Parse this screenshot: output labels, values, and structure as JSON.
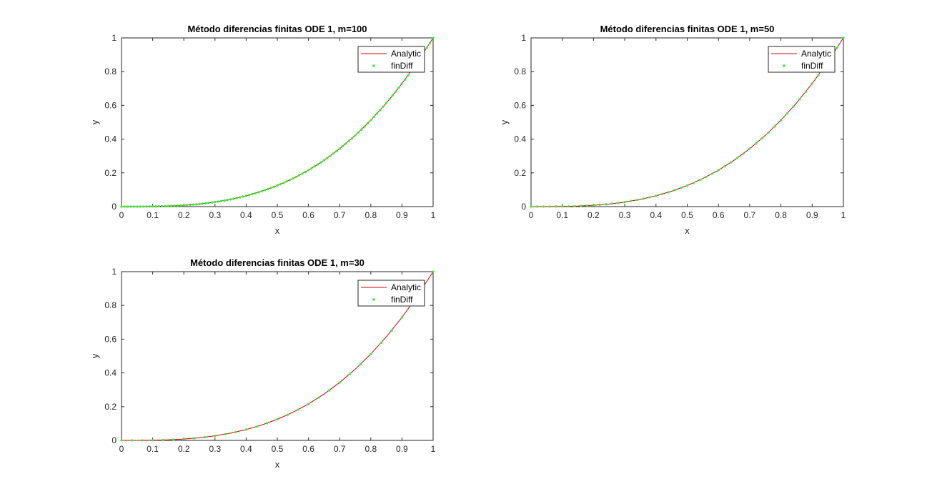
{
  "chart_data": [
    {
      "type": "line",
      "title": "Método diferencias finitas ODE 1, m=100",
      "xlabel": "x",
      "ylabel": "y",
      "xlim": [
        0,
        1
      ],
      "ylim": [
        0,
        1
      ],
      "xticks": [
        0,
        0.1,
        0.2,
        0.3,
        0.4,
        0.5,
        0.6,
        0.7,
        0.8,
        0.9,
        1
      ],
      "xtick_labels": [
        "0",
        "0.1",
        "0.2",
        "0.3",
        "0.4",
        "0.5",
        "0.6",
        "0.7",
        "0.8",
        "0.9",
        "1"
      ],
      "yticks": [
        0,
        0.2,
        0.4,
        0.6,
        0.8,
        1
      ],
      "ytick_labels": [
        "0",
        "0.2",
        "0.4",
        "0.6",
        "0.8",
        "1"
      ],
      "grid": false,
      "legend": "top-right",
      "series": [
        {
          "name": "Analytic",
          "style": "line",
          "color": "#d00000",
          "x": [
            0,
            0.05,
            0.1,
            0.15,
            0.2,
            0.25,
            0.3,
            0.35,
            0.4,
            0.45,
            0.5,
            0.55,
            0.6,
            0.65,
            0.7,
            0.75,
            0.8,
            0.85,
            0.9,
            0.95,
            1
          ],
          "y": [
            0,
            0.0001,
            0.001,
            0.0034,
            0.008,
            0.0156,
            0.027,
            0.0429,
            0.064,
            0.0911,
            0.125,
            0.1664,
            0.216,
            0.2746,
            0.343,
            0.4219,
            0.512,
            0.6141,
            0.729,
            0.8574,
            1
          ]
        },
        {
          "name": "finDiff",
          "style": "markers",
          "color": "#33ee33",
          "x": [
            0,
            0.01,
            0.02,
            0.03,
            0.04,
            0.05,
            0.06,
            0.07,
            0.08,
            0.09,
            0.1,
            0.11,
            0.12,
            0.13,
            0.14,
            0.15,
            0.16,
            0.17,
            0.18,
            0.19,
            0.2,
            0.21,
            0.22,
            0.23,
            0.24,
            0.25,
            0.26,
            0.27,
            0.28,
            0.29,
            0.3,
            0.31,
            0.32,
            0.33,
            0.34,
            0.35,
            0.36,
            0.37,
            0.38,
            0.39,
            0.4,
            0.41,
            0.42,
            0.43,
            0.44,
            0.45,
            0.46,
            0.47,
            0.48,
            0.49,
            0.5,
            0.51,
            0.52,
            0.53,
            0.54,
            0.55,
            0.56,
            0.57,
            0.58,
            0.59,
            0.6,
            0.61,
            0.62,
            0.63,
            0.64,
            0.65,
            0.66,
            0.67,
            0.68,
            0.69,
            0.7,
            0.71,
            0.72,
            0.73,
            0.74,
            0.75,
            0.76,
            0.77,
            0.78,
            0.79,
            0.8,
            0.81,
            0.82,
            0.83,
            0.84,
            0.85,
            0.86,
            0.87,
            0.88,
            0.89,
            0.9,
            0.91,
            0.92,
            0.93,
            0.94,
            0.95,
            0.96,
            0.97,
            0.98,
            0.99,
            1
          ],
          "y": [
            0,
            0,
            0,
            0,
            0.0001,
            0.0001,
            0.0002,
            0.0003,
            0.0005,
            0.0007,
            0.001,
            0.0013,
            0.0017,
            0.0022,
            0.0027,
            0.0034,
            0.0041,
            0.0049,
            0.0058,
            0.0069,
            0.008,
            0.0093,
            0.0106,
            0.0122,
            0.0138,
            0.0156,
            0.0176,
            0.0197,
            0.022,
            0.0244,
            0.027,
            0.0298,
            0.0328,
            0.0359,
            0.0393,
            0.0429,
            0.0467,
            0.0507,
            0.0549,
            0.0593,
            0.064,
            0.0689,
            0.0741,
            0.0795,
            0.0852,
            0.0911,
            0.0973,
            0.1038,
            0.1106,
            0.1176,
            0.125,
            0.1327,
            0.1406,
            0.1489,
            0.1575,
            0.1664,
            0.1756,
            0.1852,
            0.1951,
            0.2054,
            0.216,
            0.227,
            0.2383,
            0.25,
            0.2621,
            0.2746,
            0.2875,
            0.3008,
            0.3144,
            0.3285,
            0.343,
            0.3579,
            0.3732,
            0.389,
            0.4052,
            0.4219,
            0.439,
            0.4565,
            0.4746,
            0.493,
            0.512,
            0.5314,
            0.5514,
            0.5718,
            0.5927,
            0.6141,
            0.636,
            0.6585,
            0.6815,
            0.705,
            0.729,
            0.7536,
            0.7787,
            0.8044,
            0.8306,
            0.8574,
            0.8847,
            0.9127,
            0.9412,
            0.9703,
            1
          ]
        }
      ]
    },
    {
      "type": "line",
      "title": "Método diferencias finitas ODE 1, m=50",
      "xlabel": "x",
      "ylabel": "y",
      "xlim": [
        0,
        1
      ],
      "ylim": [
        0,
        1
      ],
      "xticks": [
        0,
        0.1,
        0.2,
        0.3,
        0.4,
        0.5,
        0.6,
        0.7,
        0.8,
        0.9,
        1
      ],
      "xtick_labels": [
        "0",
        "0.1",
        "0.2",
        "0.3",
        "0.4",
        "0.5",
        "0.6",
        "0.7",
        "0.8",
        "0.9",
        "1"
      ],
      "yticks": [
        0,
        0.2,
        0.4,
        0.6,
        0.8,
        1
      ],
      "ytick_labels": [
        "0",
        "0.2",
        "0.4",
        "0.6",
        "0.8",
        "1"
      ],
      "grid": false,
      "legend": "top-right",
      "series": [
        {
          "name": "Analytic",
          "style": "line",
          "color": "#d00000",
          "x": [
            0,
            0.05,
            0.1,
            0.15,
            0.2,
            0.25,
            0.3,
            0.35,
            0.4,
            0.45,
            0.5,
            0.55,
            0.6,
            0.65,
            0.7,
            0.75,
            0.8,
            0.85,
            0.9,
            0.95,
            1
          ],
          "y": [
            0,
            0.0001,
            0.001,
            0.0034,
            0.008,
            0.0156,
            0.027,
            0.0429,
            0.064,
            0.0911,
            0.125,
            0.1664,
            0.216,
            0.2746,
            0.343,
            0.4219,
            0.512,
            0.6141,
            0.729,
            0.8574,
            1
          ]
        },
        {
          "name": "finDiff",
          "style": "markers",
          "color": "#33ee33",
          "x": [
            0,
            0.02,
            0.04,
            0.06,
            0.08,
            0.1,
            0.12,
            0.14,
            0.16,
            0.18,
            0.2,
            0.22,
            0.24,
            0.26,
            0.28,
            0.3,
            0.32,
            0.34,
            0.36,
            0.38,
            0.4,
            0.42,
            0.44,
            0.46,
            0.48,
            0.5,
            0.52,
            0.54,
            0.56,
            0.58,
            0.6,
            0.62,
            0.64,
            0.66,
            0.68,
            0.7,
            0.72,
            0.74,
            0.76,
            0.78,
            0.8,
            0.82,
            0.84,
            0.86,
            0.88,
            0.9,
            0.92,
            0.94,
            0.96,
            0.98,
            1
          ],
          "y": [
            0,
            0,
            0.0001,
            0.0002,
            0.0005,
            0.001,
            0.0017,
            0.0027,
            0.0041,
            0.0058,
            0.008,
            0.0106,
            0.0138,
            0.0176,
            0.022,
            0.027,
            0.0328,
            0.0393,
            0.0467,
            0.0549,
            0.064,
            0.0741,
            0.0852,
            0.0973,
            0.1106,
            0.125,
            0.1406,
            0.1575,
            0.1756,
            0.1951,
            0.216,
            0.2383,
            0.2621,
            0.2875,
            0.3144,
            0.343,
            0.3732,
            0.4052,
            0.439,
            0.4746,
            0.512,
            0.5514,
            0.5927,
            0.636,
            0.6815,
            0.729,
            0.7787,
            0.8306,
            0.8847,
            0.9412,
            1
          ]
        }
      ]
    },
    {
      "type": "line",
      "title": "Método diferencias finitas ODE 1, m=30",
      "xlabel": "x",
      "ylabel": "y",
      "xlim": [
        0,
        1
      ],
      "ylim": [
        0,
        1
      ],
      "xticks": [
        0,
        0.1,
        0.2,
        0.3,
        0.4,
        0.5,
        0.6,
        0.7,
        0.8,
        0.9,
        1
      ],
      "xtick_labels": [
        "0",
        "0.1",
        "0.2",
        "0.3",
        "0.4",
        "0.5",
        "0.6",
        "0.7",
        "0.8",
        "0.9",
        "1"
      ],
      "yticks": [
        0,
        0.2,
        0.4,
        0.6,
        0.8,
        1
      ],
      "ytick_labels": [
        "0",
        "0.2",
        "0.4",
        "0.6",
        "0.8",
        "1"
      ],
      "grid": false,
      "legend": "top-right",
      "series": [
        {
          "name": "Analytic",
          "style": "line",
          "color": "#d00000",
          "x": [
            0,
            0.05,
            0.1,
            0.15,
            0.2,
            0.25,
            0.3,
            0.35,
            0.4,
            0.45,
            0.5,
            0.55,
            0.6,
            0.65,
            0.7,
            0.75,
            0.8,
            0.85,
            0.9,
            0.95,
            1
          ],
          "y": [
            0,
            0.0001,
            0.001,
            0.0034,
            0.008,
            0.0156,
            0.027,
            0.0429,
            0.064,
            0.0911,
            0.125,
            0.1664,
            0.216,
            0.2746,
            0.343,
            0.4219,
            0.512,
            0.6141,
            0.729,
            0.8574,
            1
          ]
        },
        {
          "name": "finDiff",
          "style": "markers",
          "color": "#33ee33",
          "x": [
            0,
            0.0333,
            0.0667,
            0.1,
            0.1333,
            0.1667,
            0.2,
            0.2333,
            0.2667,
            0.3,
            0.3333,
            0.3667,
            0.4,
            0.4333,
            0.4667,
            0.5,
            0.5333,
            0.5667,
            0.6,
            0.6333,
            0.6667,
            0.7,
            0.7333,
            0.7667,
            0.8,
            0.8333,
            0.8667,
            0.9,
            0.9333,
            0.9667,
            1
          ],
          "y": [
            0,
            0,
            0.0003,
            0.001,
            0.0024,
            0.0046,
            0.008,
            0.0127,
            0.019,
            0.027,
            0.037,
            0.0493,
            0.064,
            0.0814,
            0.1016,
            0.125,
            0.1517,
            0.182,
            0.216,
            0.254,
            0.2963,
            0.343,
            0.3944,
            0.4507,
            0.512,
            0.5787,
            0.651,
            0.729,
            0.813,
            0.9033,
            1
          ]
        }
      ]
    }
  ]
}
